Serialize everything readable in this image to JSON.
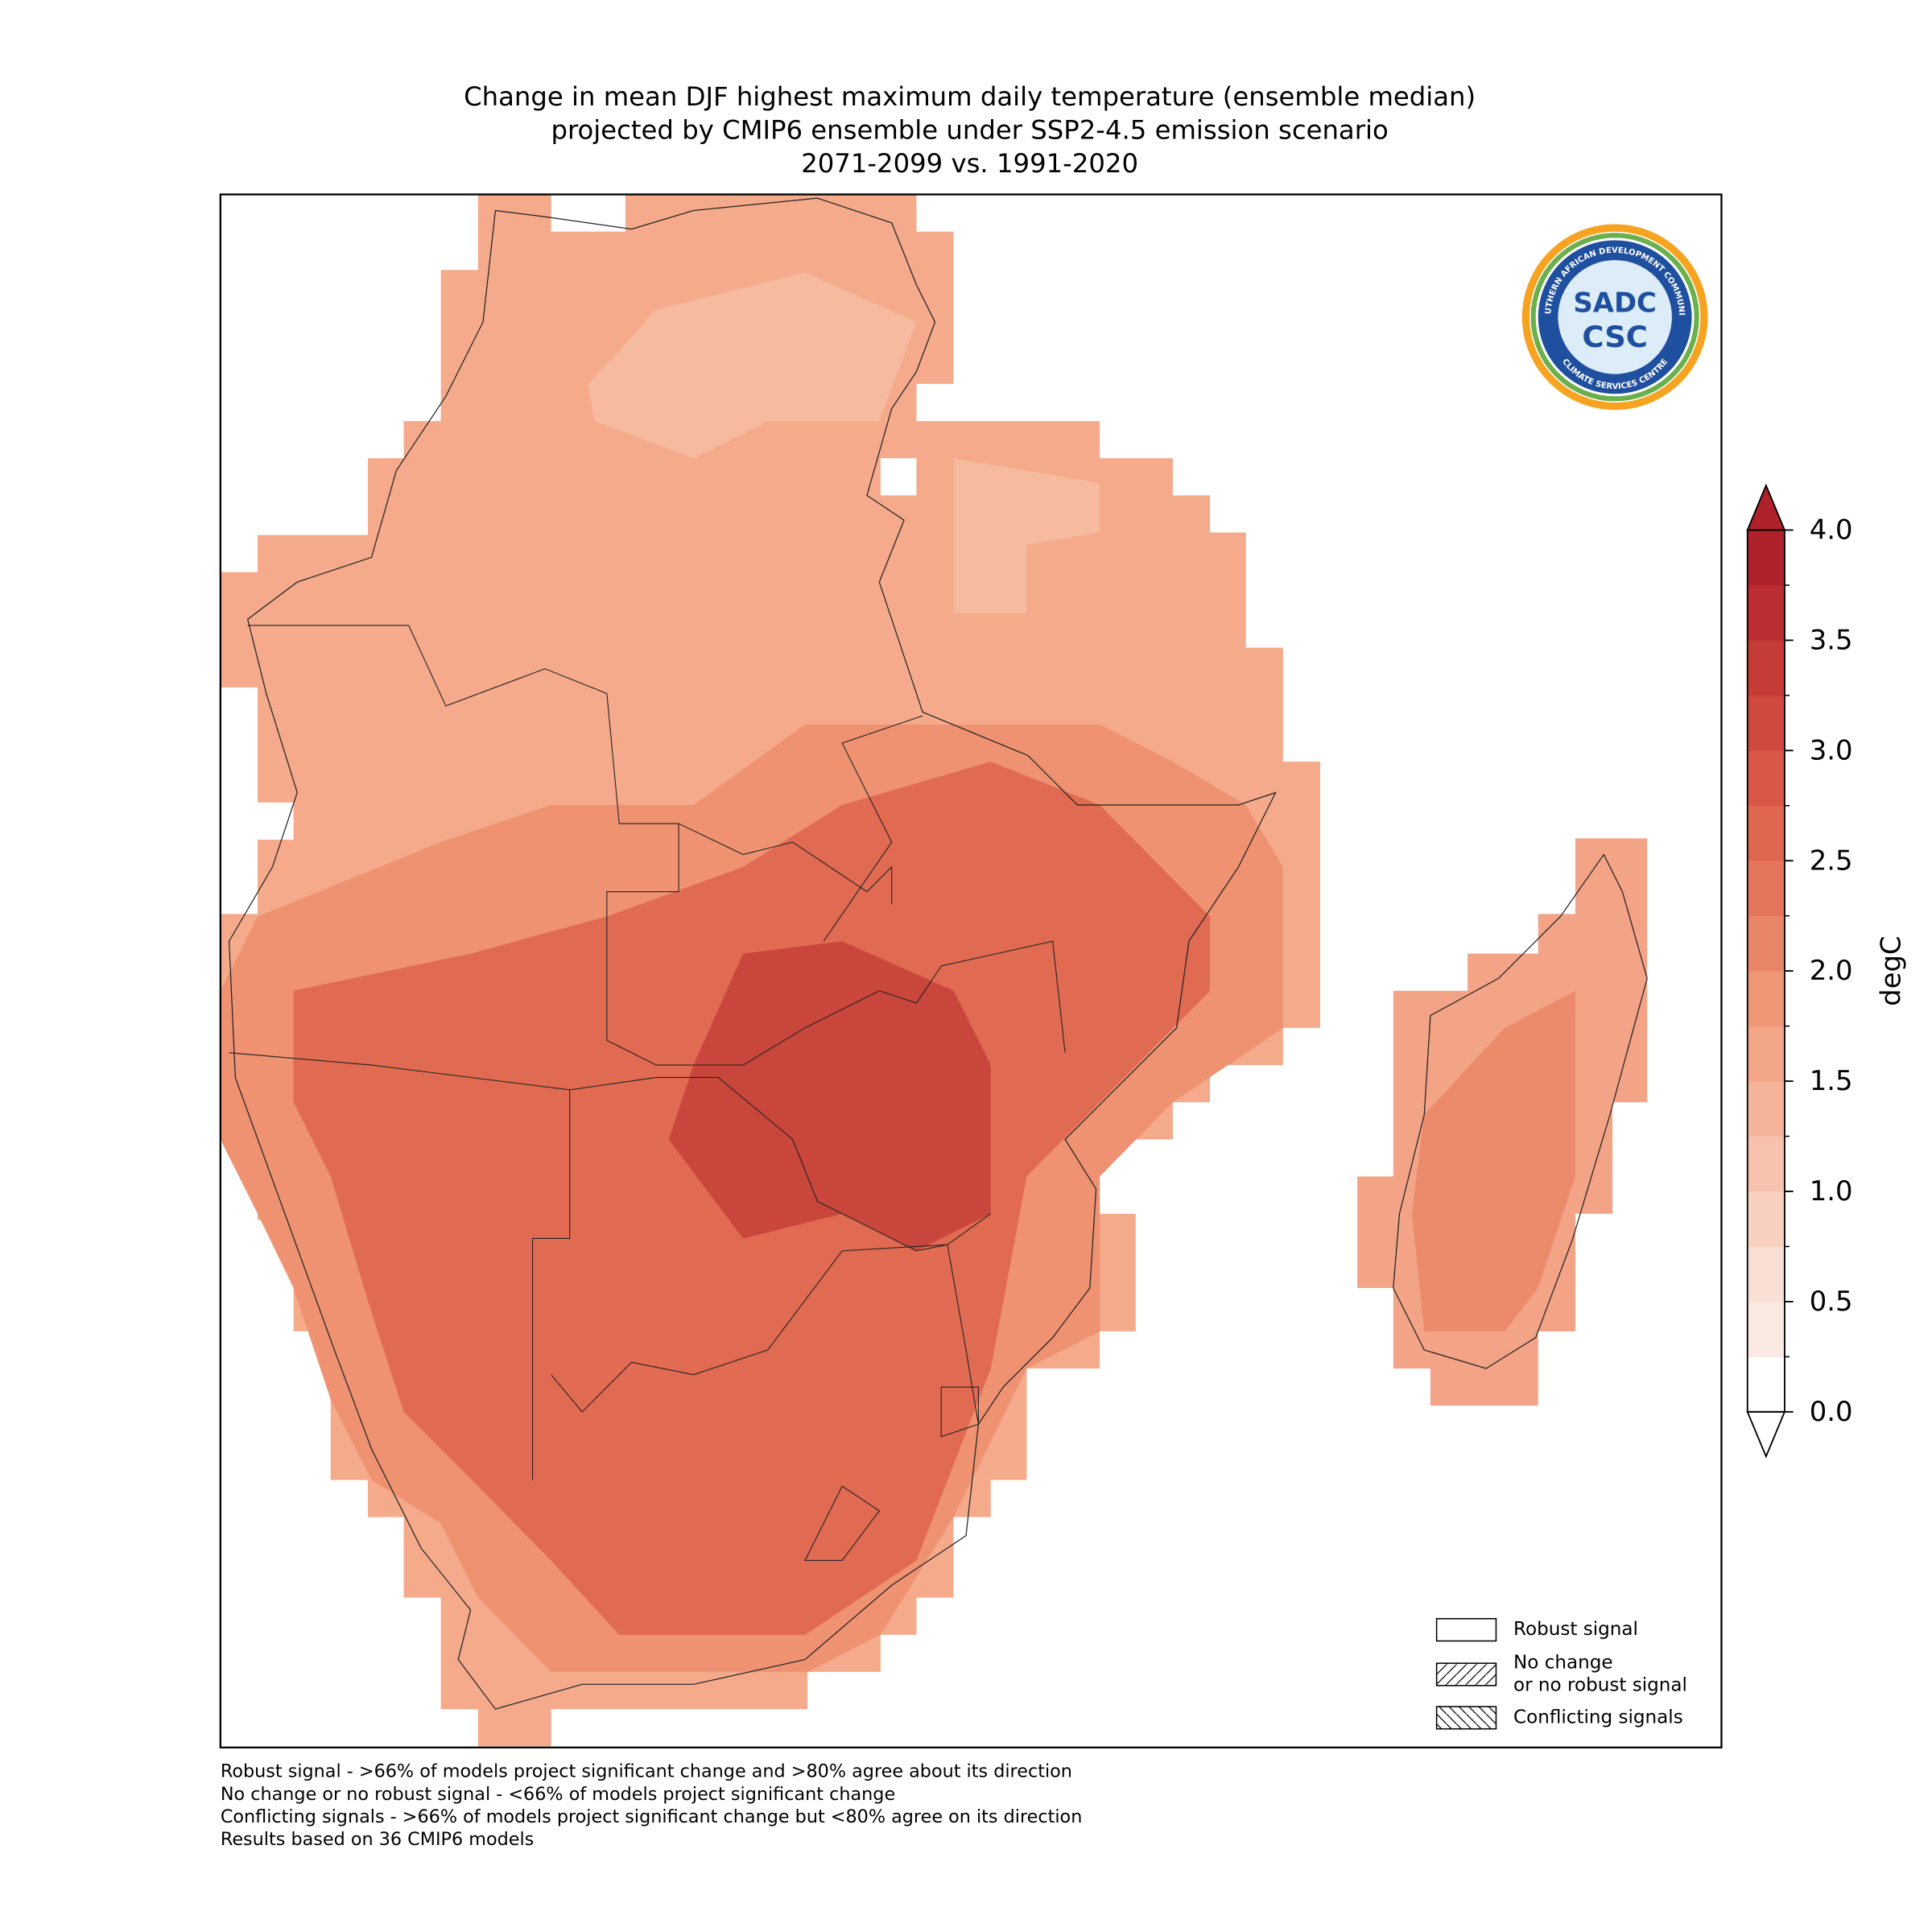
{
  "title": [
    "Change in mean DJF highest maximum daily temperature (ensemble median)",
    "projected by CMIP6 ensemble under SSP2-4.5 emission scenario",
    "2071-2099 vs. 1991-2020"
  ],
  "logo": {
    "ring_top": "SOUTHERN AFRICAN DEVELOPMENT COMMUNITY",
    "ring_bottom": "CLIMATE SERVICES CENTRE",
    "mark": "SADC",
    "name": "CSC"
  },
  "colorbar": {
    "label": "degC",
    "lim": [
      0,
      4
    ],
    "ticks": [
      {
        "value": 0,
        "label": "0.0"
      },
      {
        "value": 0.5,
        "label": "0.5"
      },
      {
        "value": 1,
        "label": "1.0"
      },
      {
        "value": 1.5,
        "label": "1.5"
      },
      {
        "value": 2,
        "label": "2.0"
      },
      {
        "value": 2.5,
        "label": "2.5"
      },
      {
        "value": 3,
        "label": "3.0"
      },
      {
        "value": 3.5,
        "label": "3.5"
      },
      {
        "value": 4,
        "label": "4.0"
      }
    ],
    "colors": [
      "#ffffff",
      "#fbe9e3",
      "#fadfd5",
      "#f9d0c0",
      "#f7c2ad",
      "#f5b49a",
      "#f3a588",
      "#ef9676",
      "#ea8668",
      "#e5765c",
      "#df6651",
      "#d85747",
      "#cf493e",
      "#c53b36",
      "#bb2d30",
      "#b0222b"
    ],
    "extend": "both"
  },
  "legend": [
    {
      "label": [
        "Robust signal"
      ],
      "hatch": "none"
    },
    {
      "label": [
        "No change",
        "or no robust signal"
      ],
      "hatch": "forward"
    },
    {
      "label": [
        "Conflicting signals"
      ],
      "hatch": "back"
    }
  ],
  "footnotes": [
    "Robust signal - >66% of models project significant change and >80% agree about its direction",
    "No change or no robust signal - <66% of models project significant change",
    "Conflicting signals - >66% of models project significant change but <80% agree on its direction",
    "Results based on 36 CMIP6 models"
  ]
}
